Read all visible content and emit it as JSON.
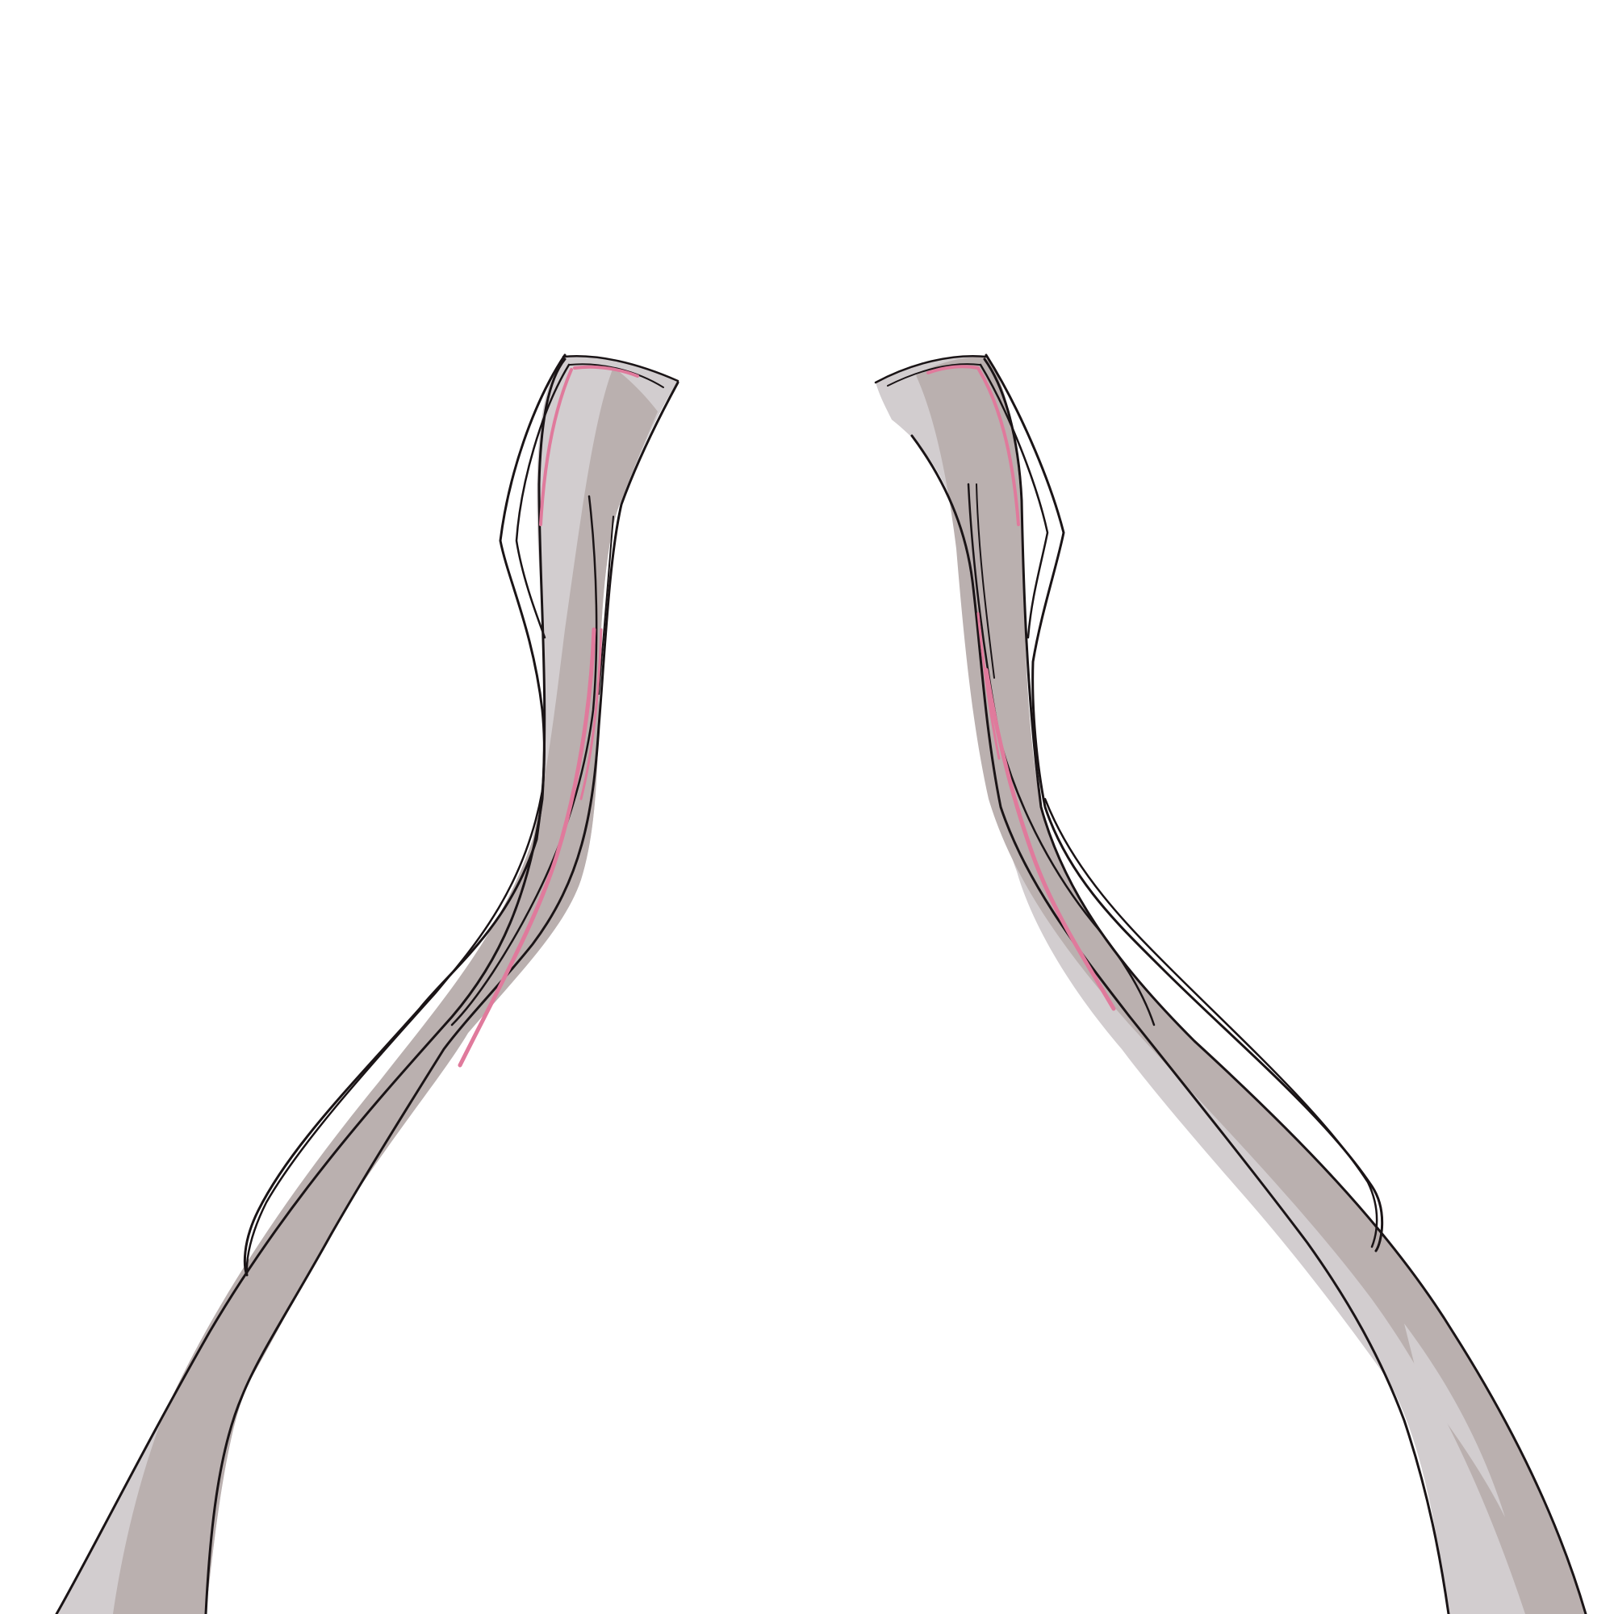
{
  "illustration": {
    "subject": "",
    "colors": {
      "background": "#ffffff",
      "light_gray": "#d2cdcf",
      "mid_gray": "#bab0af",
      "outline": "#1a1416",
      "accent_pink": "#e07a9c"
    }
  }
}
